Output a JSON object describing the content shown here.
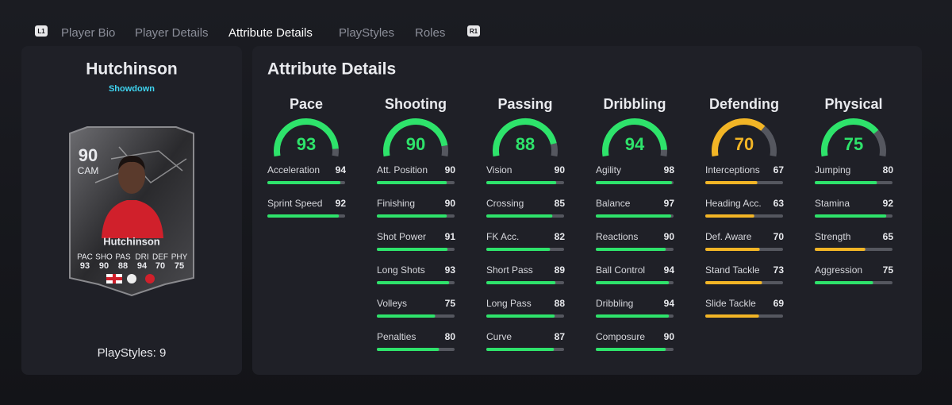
{
  "nav": {
    "left_button": "L1",
    "tabs": [
      "Player Bio",
      "Player Details",
      "Attribute Details",
      "PlayStyles",
      "Roles"
    ],
    "active_tab": 2,
    "right_button": "R1"
  },
  "card": {
    "name": "Hutchinson",
    "subtitle": "Showdown",
    "rating": 90,
    "position": "CAM",
    "card_name": "Hutchinson",
    "stats": [
      {
        "label": "PAC",
        "value": 93
      },
      {
        "label": "SHO",
        "value": 90
      },
      {
        "label": "PAS",
        "value": 88
      },
      {
        "label": "DRI",
        "value": 94
      },
      {
        "label": "DEF",
        "value": 70
      },
      {
        "label": "PHY",
        "value": 75
      }
    ],
    "playstyles": "PlayStyles: 9"
  },
  "attributes": {
    "title": "Attribute Details",
    "range": [
      0,
      100
    ],
    "track_color": "#55575f",
    "categories": [
      {
        "name": "Pace",
        "overall": 93,
        "color": "#2ee36b",
        "attributes": [
          {
            "name": "Acceleration",
            "value": 94,
            "color": "#2ee36b"
          },
          {
            "name": "Sprint Speed",
            "value": 92,
            "color": "#2ee36b"
          }
        ]
      },
      {
        "name": "Shooting",
        "overall": 90,
        "color": "#2ee36b",
        "attributes": [
          {
            "name": "Att. Position",
            "value": 90,
            "color": "#2ee36b"
          },
          {
            "name": "Finishing",
            "value": 90,
            "color": "#2ee36b"
          },
          {
            "name": "Shot Power",
            "value": 91,
            "color": "#2ee36b"
          },
          {
            "name": "Long Shots",
            "value": 93,
            "color": "#2ee36b"
          },
          {
            "name": "Volleys",
            "value": 75,
            "color": "#2ee36b"
          },
          {
            "name": "Penalties",
            "value": 80,
            "color": "#2ee36b"
          }
        ]
      },
      {
        "name": "Passing",
        "overall": 88,
        "color": "#2ee36b",
        "attributes": [
          {
            "name": "Vision",
            "value": 90,
            "color": "#2ee36b"
          },
          {
            "name": "Crossing",
            "value": 85,
            "color": "#2ee36b"
          },
          {
            "name": "FK Acc.",
            "value": 82,
            "color": "#2ee36b"
          },
          {
            "name": "Short Pass",
            "value": 89,
            "color": "#2ee36b"
          },
          {
            "name": "Long Pass",
            "value": 88,
            "color": "#2ee36b"
          },
          {
            "name": "Curve",
            "value": 87,
            "color": "#2ee36b"
          }
        ]
      },
      {
        "name": "Dribbling",
        "overall": 94,
        "color": "#2ee36b",
        "attributes": [
          {
            "name": "Agility",
            "value": 98,
            "color": "#2ee36b"
          },
          {
            "name": "Balance",
            "value": 97,
            "color": "#2ee36b"
          },
          {
            "name": "Reactions",
            "value": 90,
            "color": "#2ee36b"
          },
          {
            "name": "Ball Control",
            "value": 94,
            "color": "#2ee36b"
          },
          {
            "name": "Dribbling",
            "value": 94,
            "color": "#2ee36b"
          },
          {
            "name": "Composure",
            "value": 90,
            "color": "#2ee36b"
          }
        ]
      },
      {
        "name": "Defending",
        "overall": 70,
        "color": "#f2b526",
        "attributes": [
          {
            "name": "Interceptions",
            "value": 67,
            "color": "#f2b526"
          },
          {
            "name": "Heading Acc.",
            "value": 63,
            "color": "#f2b526"
          },
          {
            "name": "Def. Aware",
            "value": 70,
            "color": "#f2b526"
          },
          {
            "name": "Stand Tackle",
            "value": 73,
            "color": "#f2b526"
          },
          {
            "name": "Slide Tackle",
            "value": 69,
            "color": "#f2b526"
          }
        ]
      },
      {
        "name": "Physical",
        "overall": 75,
        "color": "#2ee36b",
        "attributes": [
          {
            "name": "Jumping",
            "value": 80,
            "color": "#2ee36b"
          },
          {
            "name": "Stamina",
            "value": 92,
            "color": "#2ee36b"
          },
          {
            "name": "Strength",
            "value": 65,
            "color": "#f2b526"
          },
          {
            "name": "Aggression",
            "value": 75,
            "color": "#2ee36b"
          }
        ]
      }
    ]
  }
}
